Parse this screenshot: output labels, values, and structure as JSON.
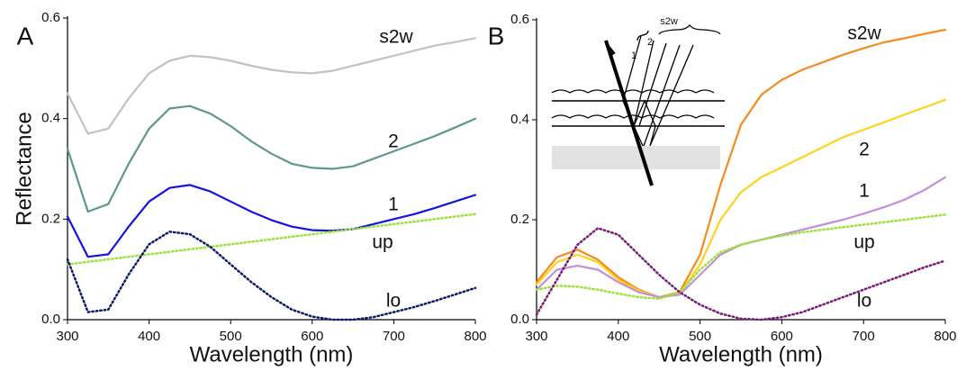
{
  "chart_data": [
    {
      "type": "line",
      "panel_label": "A",
      "xlabel": "Wavelength (nm)",
      "ylabel": "Reflectance",
      "x": [
        300,
        325,
        350,
        375,
        400,
        425,
        450,
        475,
        500,
        525,
        550,
        575,
        600,
        625,
        650,
        675,
        700,
        725,
        750,
        775,
        800
      ],
      "xlim": [
        300,
        800
      ],
      "xticks": [
        300,
        400,
        500,
        600,
        700,
        800
      ],
      "ylim": [
        0,
        0.6
      ],
      "yticks": [
        {
          "value": 0,
          "label": "0.0"
        },
        0.2,
        0.4,
        0.6
      ],
      "series": [
        {
          "name": "s2w",
          "color": "#c2c2c2",
          "linestyle": "solid",
          "values": [
            0.45,
            0.37,
            0.38,
            0.44,
            0.49,
            0.515,
            0.525,
            0.522,
            0.515,
            0.505,
            0.497,
            0.492,
            0.49,
            0.495,
            0.505,
            0.515,
            0.525,
            0.535,
            0.545,
            0.552,
            0.56
          ]
        },
        {
          "name": "2",
          "color": "#5f9690",
          "linestyle": "solid",
          "values": [
            0.34,
            0.215,
            0.23,
            0.31,
            0.38,
            0.42,
            0.425,
            0.41,
            0.385,
            0.355,
            0.33,
            0.31,
            0.302,
            0.3,
            0.305,
            0.32,
            0.335,
            0.35,
            0.365,
            0.382,
            0.4
          ]
        },
        {
          "name": "1",
          "color": "#1414e0",
          "linestyle": "solid",
          "values": [
            0.205,
            0.125,
            0.13,
            0.185,
            0.235,
            0.262,
            0.268,
            0.255,
            0.235,
            0.215,
            0.198,
            0.185,
            0.178,
            0.177,
            0.18,
            0.19,
            0.2,
            0.21,
            0.222,
            0.235,
            0.248
          ]
        },
        {
          "name": "up",
          "color": "#9be33a",
          "linestyle": "dotted",
          "values": [
            0.11,
            0.115,
            0.12,
            0.125,
            0.13,
            0.135,
            0.14,
            0.145,
            0.15,
            0.155,
            0.16,
            0.165,
            0.17,
            0.175,
            0.18,
            0.185,
            0.19,
            0.195,
            0.2,
            0.205,
            0.21
          ]
        },
        {
          "name": "lo",
          "color": "#0a1a6e",
          "linestyle": "dotted",
          "values": [
            0.12,
            0.015,
            0.02,
            0.09,
            0.15,
            0.175,
            0.17,
            0.145,
            0.11,
            0.075,
            0.045,
            0.02,
            0.006,
            0.0,
            0.0,
            0.005,
            0.015,
            0.025,
            0.037,
            0.05,
            0.063
          ]
        }
      ]
    },
    {
      "type": "line",
      "panel_label": "B",
      "xlabel": "Wavelength (nm)",
      "inset_labels": [
        "1",
        "2",
        "s2w"
      ],
      "x": [
        300,
        325,
        350,
        375,
        400,
        425,
        450,
        475,
        500,
        525,
        550,
        575,
        600,
        625,
        650,
        675,
        700,
        725,
        750,
        775,
        800
      ],
      "xlim": [
        300,
        800
      ],
      "xticks": [
        300,
        400,
        500,
        600,
        700,
        800
      ],
      "ylim": [
        0,
        0.6
      ],
      "yticks": [
        {
          "value": 0,
          "label": "0.0"
        },
        0.2,
        0.4,
        0.6
      ],
      "series": [
        {
          "name": "s2w",
          "color": "#f58a1e",
          "linestyle": "solid",
          "values": [
            0.075,
            0.125,
            0.14,
            0.12,
            0.085,
            0.06,
            0.045,
            0.055,
            0.13,
            0.27,
            0.39,
            0.45,
            0.48,
            0.5,
            0.515,
            0.53,
            0.543,
            0.555,
            0.563,
            0.572,
            0.58
          ]
        },
        {
          "name": "2",
          "color": "#ffd21e",
          "linestyle": "solid",
          "values": [
            0.07,
            0.115,
            0.13,
            0.115,
            0.08,
            0.058,
            0.045,
            0.052,
            0.11,
            0.2,
            0.255,
            0.285,
            0.305,
            0.325,
            0.345,
            0.365,
            0.38,
            0.395,
            0.41,
            0.425,
            0.44
          ]
        },
        {
          "name": "1",
          "color": "#c090d8",
          "linestyle": "solid",
          "values": [
            0.06,
            0.1,
            0.108,
            0.1,
            0.075,
            0.055,
            0.045,
            0.05,
            0.09,
            0.13,
            0.15,
            0.16,
            0.17,
            0.18,
            0.19,
            0.2,
            0.212,
            0.225,
            0.24,
            0.26,
            0.285
          ]
        },
        {
          "name": "up",
          "color": "#9be33a",
          "linestyle": "dotted",
          "values": [
            0.06,
            0.068,
            0.066,
            0.06,
            0.052,
            0.045,
            0.042,
            0.055,
            0.1,
            0.135,
            0.15,
            0.16,
            0.168,
            0.175,
            0.18,
            0.185,
            0.19,
            0.195,
            0.2,
            0.205,
            0.21
          ]
        },
        {
          "name": "lo",
          "color": "#7a1a7a",
          "linestyle": "dotted",
          "values": [
            0.01,
            0.08,
            0.15,
            0.183,
            0.17,
            0.13,
            0.09,
            0.055,
            0.03,
            0.012,
            0.002,
            0.0,
            0.005,
            0.015,
            0.03,
            0.045,
            0.06,
            0.075,
            0.09,
            0.105,
            0.118
          ]
        }
      ]
    }
  ]
}
